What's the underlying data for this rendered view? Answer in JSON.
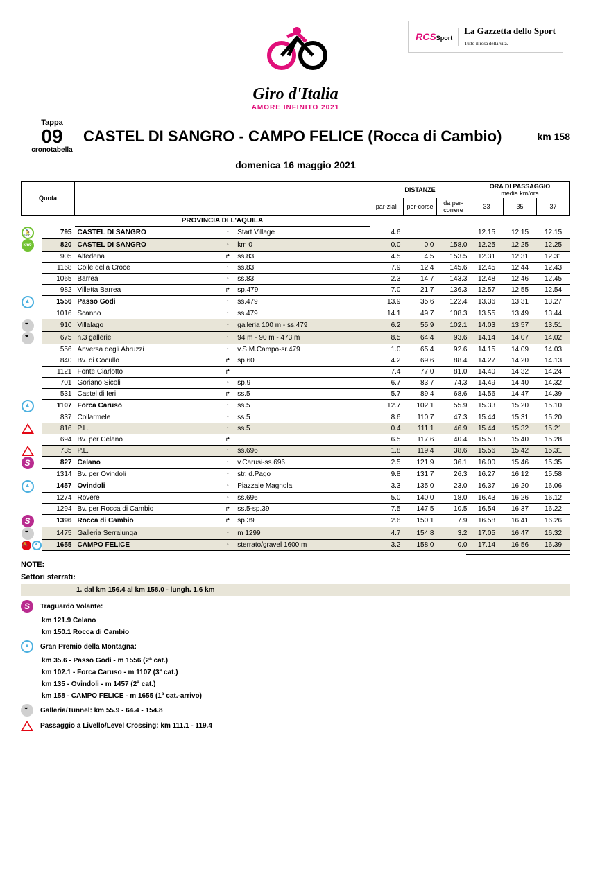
{
  "sponsor": {
    "rcs": "RCS",
    "sport": "Sport",
    "gazzetta": "La Gazzetta dello Sport",
    "gazzetta_sub": "Tutto il rosa della vita."
  },
  "logo": {
    "title": "Giro d'Italia",
    "sub": "AMORE INFINITO 2021"
  },
  "tappa": {
    "label": "Tappa",
    "num": "09",
    "sub": "cronotabella"
  },
  "stage_title": "CASTEL DI SANGRO - CAMPO FELICE (Rocca di Cambio)",
  "stage_km": "km 158",
  "date": "domenica 16 maggio 2021",
  "province_header": "PROVINCIA DI L'AQUILA",
  "hdr": {
    "quota": "Quota",
    "distanze": "DISTANZE",
    "parz": "par-ziali",
    "perc": "per-corse",
    "daperc": "da per-correre",
    "ora": "ORA DI PASSAGGIO",
    "media": "media km/ora",
    "s33": "33",
    "s35": "35",
    "s37": "37"
  },
  "rows": [
    {
      "icon": "start",
      "icon2": "",
      "q": "795",
      "loc": "CASTEL DI SANGRO",
      "dir": "↑",
      "road": "Start Village",
      "p": "4.6",
      "d": "",
      "r": "",
      "t1": "12.15",
      "t2": "12.15",
      "t3": "12.15",
      "bold": true,
      "shade": false
    },
    {
      "icon": "km0",
      "icon2": "",
      "q": "820",
      "loc": "CASTEL DI SANGRO",
      "dir": "↑",
      "road": "km 0",
      "p": "0.0",
      "d": "0.0",
      "r": "158.0",
      "t1": "12.25",
      "t2": "12.25",
      "t3": "12.25",
      "bold": true,
      "shade": true
    },
    {
      "icon": "",
      "icon2": "",
      "q": "905",
      "loc": "Alfedena",
      "dir": "↱",
      "road": "ss.83",
      "p": "4.5",
      "d": "4.5",
      "r": "153.5",
      "t1": "12.31",
      "t2": "12.31",
      "t3": "12.31",
      "bold": false,
      "shade": false
    },
    {
      "icon": "",
      "icon2": "",
      "q": "1168",
      "loc": "Colle della Croce",
      "dir": "↑",
      "road": "ss.83",
      "p": "7.9",
      "d": "12.4",
      "r": "145.6",
      "t1": "12.45",
      "t2": "12.44",
      "t3": "12.43",
      "bold": false,
      "shade": false
    },
    {
      "icon": "",
      "icon2": "",
      "q": "1065",
      "loc": "Barrea",
      "dir": "↑",
      "road": "ss.83",
      "p": "2.3",
      "d": "14.7",
      "r": "143.3",
      "t1": "12.48",
      "t2": "12.46",
      "t3": "12.45",
      "bold": false,
      "shade": false
    },
    {
      "icon": "",
      "icon2": "",
      "q": "982",
      "loc": "Villetta Barrea",
      "dir": "↱",
      "road": "sp.479",
      "p": "7.0",
      "d": "21.7",
      "r": "136.3",
      "t1": "12.57",
      "t2": "12.55",
      "t3": "12.54",
      "bold": false,
      "shade": false
    },
    {
      "icon": "kom",
      "icon2": "",
      "q": "1556",
      "loc": "Passo Godi",
      "dir": "↑",
      "road": "ss.479",
      "p": "13.9",
      "d": "35.6",
      "r": "122.4",
      "t1": "13.36",
      "t2": "13.31",
      "t3": "13.27",
      "bold": true,
      "shade": false
    },
    {
      "icon": "",
      "icon2": "",
      "q": "1016",
      "loc": "Scanno",
      "dir": "↑",
      "road": "ss.479",
      "p": "14.1",
      "d": "49.7",
      "r": "108.3",
      "t1": "13.55",
      "t2": "13.49",
      "t3": "13.44",
      "bold": false,
      "shade": false
    },
    {
      "icon": "tunnel",
      "icon2": "",
      "q": "910",
      "loc": "Villalago",
      "dir": "↑",
      "road": "galleria 100 m - ss.479",
      "p": "6.2",
      "d": "55.9",
      "r": "102.1",
      "t1": "14.03",
      "t2": "13.57",
      "t3": "13.51",
      "bold": false,
      "shade": true
    },
    {
      "icon": "tunnel",
      "icon2": "",
      "q": "675",
      "loc": "n.3 gallerie",
      "dir": "↑",
      "road": "94 m - 90 m - 473 m",
      "p": "8.5",
      "d": "64.4",
      "r": "93.6",
      "t1": "14.14",
      "t2": "14.07",
      "t3": "14.02",
      "bold": false,
      "shade": true
    },
    {
      "icon": "",
      "icon2": "",
      "q": "556",
      "loc": "Anversa degli Abruzzi",
      "dir": "↑",
      "road": "v.S.M.Campo-sr.479",
      "p": "1.0",
      "d": "65.4",
      "r": "92.6",
      "t1": "14.15",
      "t2": "14.09",
      "t3": "14.03",
      "bold": false,
      "shade": false
    },
    {
      "icon": "",
      "icon2": "",
      "q": "840",
      "loc": "Bv. di Cocullo",
      "dir": "↱",
      "road": "sp.60",
      "p": "4.2",
      "d": "69.6",
      "r": "88.4",
      "t1": "14.27",
      "t2": "14.20",
      "t3": "14.13",
      "bold": false,
      "shade": false
    },
    {
      "icon": "",
      "icon2": "",
      "q": "1121",
      "loc": "Fonte Ciarlotto",
      "dir": "↱",
      "road": "",
      "p": "7.4",
      "d": "77.0",
      "r": "81.0",
      "t1": "14.40",
      "t2": "14.32",
      "t3": "14.24",
      "bold": false,
      "shade": false
    },
    {
      "icon": "",
      "icon2": "",
      "q": "701",
      "loc": "Goriano Sicoli",
      "dir": "↑",
      "road": "sp.9",
      "p": "6.7",
      "d": "83.7",
      "r": "74.3",
      "t1": "14.49",
      "t2": "14.40",
      "t3": "14.32",
      "bold": false,
      "shade": false
    },
    {
      "icon": "",
      "icon2": "",
      "q": "531",
      "loc": "Castel di Ieri",
      "dir": "↱",
      "road": "ss.5",
      "p": "5.7",
      "d": "89.4",
      "r": "68.6",
      "t1": "14.56",
      "t2": "14.47",
      "t3": "14.39",
      "bold": false,
      "shade": false
    },
    {
      "icon": "kom",
      "icon2": "",
      "q": "1107",
      "loc": "Forca Caruso",
      "dir": "↑",
      "road": "ss.5",
      "p": "12.7",
      "d": "102.1",
      "r": "55.9",
      "t1": "15.33",
      "t2": "15.20",
      "t3": "15.10",
      "bold": true,
      "shade": false
    },
    {
      "icon": "",
      "icon2": "",
      "q": "837",
      "loc": "Collarmele",
      "dir": "↑",
      "road": "ss.5",
      "p": "8.6",
      "d": "110.7",
      "r": "47.3",
      "t1": "15.44",
      "t2": "15.31",
      "t3": "15.20",
      "bold": false,
      "shade": false
    },
    {
      "icon": "level",
      "icon2": "",
      "q": "816",
      "loc": "P.L.",
      "dir": "↑",
      "road": "ss.5",
      "p": "0.4",
      "d": "111.1",
      "r": "46.9",
      "t1": "15.44",
      "t2": "15.32",
      "t3": "15.21",
      "bold": false,
      "shade": true
    },
    {
      "icon": "",
      "icon2": "",
      "q": "694",
      "loc": "Bv. per Celano",
      "dir": "↱",
      "road": "",
      "p": "6.5",
      "d": "117.6",
      "r": "40.4",
      "t1": "15.53",
      "t2": "15.40",
      "t3": "15.28",
      "bold": false,
      "shade": false
    },
    {
      "icon": "level",
      "icon2": "",
      "q": "735",
      "loc": "P.L.",
      "dir": "↑",
      "road": "ss.696",
      "p": "1.8",
      "d": "119.4",
      "r": "38.6",
      "t1": "15.56",
      "t2": "15.42",
      "t3": "15.31",
      "bold": false,
      "shade": true
    },
    {
      "icon": "sprint",
      "icon2": "",
      "q": "827",
      "loc": "Celano",
      "dir": "↑",
      "road": "v.Carusi-ss.696",
      "p": "2.5",
      "d": "121.9",
      "r": "36.1",
      "t1": "16.00",
      "t2": "15.46",
      "t3": "15.35",
      "bold": true,
      "shade": false
    },
    {
      "icon": "",
      "icon2": "",
      "q": "1314",
      "loc": "Bv. per Ovindoli",
      "dir": "↑",
      "road": "str. d.Pago",
      "p": "9.8",
      "d": "131.7",
      "r": "26.3",
      "t1": "16.27",
      "t2": "16.12",
      "t3": "15.58",
      "bold": false,
      "shade": false
    },
    {
      "icon": "kom",
      "icon2": "",
      "q": "1457",
      "loc": "Ovindoli",
      "dir": "↑",
      "road": "Piazzale Magnola",
      "p": "3.3",
      "d": "135.0",
      "r": "23.0",
      "t1": "16.37",
      "t2": "16.20",
      "t3": "16.06",
      "bold": true,
      "shade": false
    },
    {
      "icon": "",
      "icon2": "",
      "q": "1274",
      "loc": "Rovere",
      "dir": "↑",
      "road": "ss.696",
      "p": "5.0",
      "d": "140.0",
      "r": "18.0",
      "t1": "16.43",
      "t2": "16.26",
      "t3": "16.12",
      "bold": false,
      "shade": false
    },
    {
      "icon": "",
      "icon2": "",
      "q": "1294",
      "loc": "Bv. per Rocca di Cambio",
      "dir": "↱",
      "road": "ss.5-sp.39",
      "p": "7.5",
      "d": "147.5",
      "r": "10.5",
      "t1": "16.54",
      "t2": "16.37",
      "t3": "16.22",
      "bold": false,
      "shade": false
    },
    {
      "icon": "sprint",
      "icon2": "",
      "q": "1396",
      "loc": "Rocca di Cambio",
      "dir": "↱",
      "road": "sp.39",
      "p": "2.6",
      "d": "150.1",
      "r": "7.9",
      "t1": "16.58",
      "t2": "16.41",
      "t3": "16.26",
      "bold": true,
      "shade": false
    },
    {
      "icon": "tunnel",
      "icon2": "",
      "q": "1475",
      "loc": "Galleria Serralunga",
      "dir": "↑",
      "road": "m 1299",
      "p": "4.7",
      "d": "154.8",
      "r": "3.2",
      "t1": "17.05",
      "t2": "16.47",
      "t3": "16.32",
      "bold": false,
      "shade": true
    },
    {
      "icon": "finish",
      "icon2": "kom",
      "q": "1655",
      "loc": "CAMPO FELICE",
      "dir": "↑",
      "road": "sterrato/gravel 1600 m",
      "p": "3.2",
      "d": "158.0",
      "r": "0.0",
      "t1": "17.14",
      "t2": "16.56",
      "t3": "16.39",
      "bold": true,
      "shade": true
    }
  ],
  "notes": {
    "note": "NOTE:",
    "sterrati_label": "Settori sterrati:",
    "sterrati": "1. dal km 156.4 al km 158.0 - lungh. 1.6 km",
    "sprint_label": "Traguardo Volante:",
    "sprint_lines": [
      "km 121.9   Celano",
      "km 150.1   Rocca di Cambio"
    ],
    "kom_label": "Gran Premio della Montagna:",
    "kom_lines": [
      "km 35.6 - Passo Godi - m 1556  (2ª cat.)",
      "km 102.1 - Forca Caruso - m 1107  (3ª cat.)",
      "km 135 - Ovindoli - m 1457  (2ª cat.)",
      "km 158 - CAMPO FELICE - m 1655  (1ª cat.-arrivo)"
    ],
    "tunnel": "Galleria/Tunnel:  km 55.9 - 64.4 - 154.8",
    "level": "Passaggio a Livello/Level Crossing:  km 111.1 - 119.4"
  }
}
